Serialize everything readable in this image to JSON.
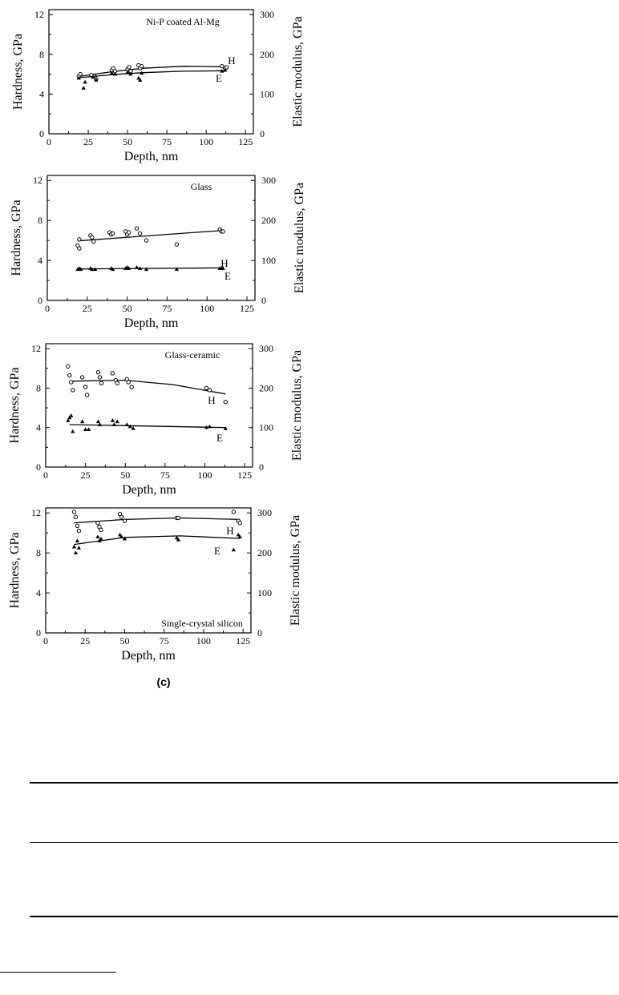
{
  "figure_label": "(c)",
  "chart_data": [
    {
      "type": "scatter",
      "title": "Ni-P coated Al-Mg",
      "xlabel": "Depth, nm",
      "ylabel": "Hardness, GPa",
      "y2label": "Elastic modulus, GPa",
      "xlim": [
        0,
        130
      ],
      "xticks": [
        0,
        25,
        50,
        75,
        100,
        125
      ],
      "ylim": [
        0,
        12.5
      ],
      "yticks": [
        0,
        4,
        8,
        12
      ],
      "y2lim": [
        0,
        312.5
      ],
      "y2ticks": [
        0,
        100,
        200,
        300
      ],
      "grid": false,
      "series": [
        {
          "name": "H",
          "marker": "circle",
          "points": [
            [
              19,
              5.8
            ],
            [
              20,
              6.0
            ],
            [
              27,
              5.9
            ],
            [
              29,
              5.8
            ],
            [
              30,
              5.5
            ],
            [
              40,
              6.4
            ],
            [
              41,
              6.6
            ],
            [
              42,
              6.3
            ],
            [
              50,
              6.5
            ],
            [
              51,
              6.7
            ],
            [
              52,
              6.3
            ],
            [
              57,
              6.9
            ],
            [
              58,
              6.6
            ],
            [
              59,
              6.8
            ],
            [
              110,
              6.8
            ],
            [
              112,
              6.6
            ],
            [
              113,
              6.7
            ]
          ],
          "fit": [
            [
              20,
              5.8
            ],
            [
              40,
              6.25
            ],
            [
              60,
              6.6
            ],
            [
              85,
              6.8
            ],
            [
              112,
              6.75
            ]
          ]
        },
        {
          "name": "E",
          "marker": "triangle",
          "points": [
            [
              19,
              5.6
            ],
            [
              22,
              4.6
            ],
            [
              23,
              5.2
            ],
            [
              28,
              5.7
            ],
            [
              30,
              5.4
            ],
            [
              40,
              6.1
            ],
            [
              42,
              6.0
            ],
            [
              50,
              6.2
            ],
            [
              52,
              6.0
            ],
            [
              57,
              5.6
            ],
            [
              58,
              5.4
            ],
            [
              59,
              6.1
            ],
            [
              110,
              6.3
            ],
            [
              112,
              6.4
            ]
          ],
          "fit": [
            [
              20,
              5.65
            ],
            [
              40,
              5.95
            ],
            [
              60,
              6.15
            ],
            [
              85,
              6.3
            ],
            [
              112,
              6.35
            ]
          ]
        }
      ]
    },
    {
      "type": "scatter",
      "title": "Glass",
      "xlabel": "Depth, nm",
      "ylabel": "Hardness, GPa",
      "y2label": "Elastic modulus, GPa",
      "xlim": [
        0,
        130
      ],
      "xticks": [
        0,
        25,
        50,
        75,
        100,
        125
      ],
      "ylim": [
        0,
        12.5
      ],
      "yticks": [
        0,
        4,
        8,
        12
      ],
      "y2lim": [
        0,
        312.5
      ],
      "y2ticks": [
        0,
        100,
        200,
        300
      ],
      "grid": false,
      "series": [
        {
          "name": "H",
          "marker": "circle",
          "points": [
            [
              19,
              5.5
            ],
            [
              20,
              5.2
            ],
            [
              20,
              6.1
            ],
            [
              27,
              6.5
            ],
            [
              28,
              6.3
            ],
            [
              29,
              5.9
            ],
            [
              39,
              6.8
            ],
            [
              40,
              6.6
            ],
            [
              41,
              6.7
            ],
            [
              49,
              6.9
            ],
            [
              50,
              6.6
            ],
            [
              51,
              6.8
            ],
            [
              56,
              7.2
            ],
            [
              58,
              6.7
            ],
            [
              62,
              6.0
            ],
            [
              81,
              5.6
            ],
            [
              108,
              7.1
            ],
            [
              109,
              6.9
            ],
            [
              110,
              6.9
            ]
          ],
          "fit": [
            [
              19,
              5.95
            ],
            [
              110,
              7.0
            ]
          ]
        },
        {
          "name": "E",
          "marker": "triangle",
          "points": [
            [
              19,
              3.1
            ],
            [
              20,
              3.2
            ],
            [
              21,
              3.1
            ],
            [
              27,
              3.2
            ],
            [
              28,
              3.1
            ],
            [
              30,
              3.1
            ],
            [
              40,
              3.2
            ],
            [
              41,
              3.1
            ],
            [
              49,
              3.2
            ],
            [
              50,
              3.3
            ],
            [
              51,
              3.2
            ],
            [
              56,
              3.3
            ],
            [
              58,
              3.2
            ],
            [
              62,
              3.1
            ],
            [
              81,
              3.1
            ],
            [
              108,
              3.2
            ],
            [
              109,
              3.2
            ],
            [
              110,
              3.2
            ]
          ],
          "fit": [
            [
              19,
              3.15
            ],
            [
              110,
              3.25
            ]
          ]
        }
      ]
    },
    {
      "type": "scatter",
      "title": "Glass-ceramic",
      "xlabel": "Depth, nm",
      "ylabel": "Hardness, GPa",
      "y2label": "Elastic modulus, GPa",
      "xlim": [
        0,
        130
      ],
      "xticks": [
        0,
        25,
        50,
        75,
        100,
        125
      ],
      "ylim": [
        0,
        12.5
      ],
      "yticks": [
        0,
        4,
        8,
        12
      ],
      "y2lim": [
        0,
        312.5
      ],
      "y2ticks": [
        0,
        100,
        200,
        300
      ],
      "grid": false,
      "series": [
        {
          "name": "H",
          "marker": "circle",
          "points": [
            [
              14,
              10.2
            ],
            [
              15,
              9.3
            ],
            [
              16,
              8.6
            ],
            [
              17,
              7.8
            ],
            [
              23,
              9.1
            ],
            [
              25,
              8.1
            ],
            [
              26,
              7.3
            ],
            [
              33,
              9.6
            ],
            [
              34,
              9.1
            ],
            [
              35,
              8.5
            ],
            [
              42,
              9.5
            ],
            [
              44,
              8.8
            ],
            [
              45,
              8.5
            ],
            [
              51,
              8.9
            ],
            [
              52,
              8.6
            ],
            [
              54,
              8.1
            ],
            [
              101,
              8.0
            ],
            [
              103,
              7.8
            ],
            [
              113,
              6.6
            ]
          ],
          "fit": [
            [
              15,
              8.7
            ],
            [
              50,
              8.8
            ],
            [
              80,
              8.35
            ],
            [
              113,
              7.4
            ]
          ]
        },
        {
          "name": "E",
          "marker": "triangle",
          "points": [
            [
              14,
              4.7
            ],
            [
              15,
              5.0
            ],
            [
              16,
              5.2
            ],
            [
              17,
              3.6
            ],
            [
              23,
              4.6
            ],
            [
              25,
              3.8
            ],
            [
              27,
              3.8
            ],
            [
              33,
              4.6
            ],
            [
              34,
              4.3
            ],
            [
              42,
              4.7
            ],
            [
              43,
              4.3
            ],
            [
              45,
              4.6
            ],
            [
              51,
              4.3
            ],
            [
              53,
              4.1
            ],
            [
              55,
              3.9
            ],
            [
              101,
              4.0
            ],
            [
              103,
              4.1
            ],
            [
              113,
              3.9
            ]
          ],
          "fit": [
            [
              15,
              4.3
            ],
            [
              50,
              4.2
            ],
            [
              113,
              4.0
            ]
          ]
        }
      ]
    },
    {
      "type": "scatter",
      "title": "Single-crystal silicon",
      "xlabel": "Depth, nm",
      "ylabel": "Hardness, GPa",
      "y2label": "Elastic modulus, GPa",
      "xlim": [
        0,
        130
      ],
      "xticks": [
        0,
        25,
        50,
        75,
        100,
        125
      ],
      "ylim": [
        0,
        12.5
      ],
      "yticks": [
        0,
        4,
        8,
        12
      ],
      "y2lim": [
        0,
        312.5
      ],
      "y2ticks": [
        0,
        100,
        200,
        300
      ],
      "grid": false,
      "series": [
        {
          "name": "H",
          "marker": "circle",
          "points": [
            [
              18,
              12.1
            ],
            [
              19,
              11.6
            ],
            [
              20,
              10.7
            ],
            [
              21,
              10.2
            ],
            [
              33,
              11.0
            ],
            [
              34,
              10.6
            ],
            [
              35,
              10.3
            ],
            [
              47,
              11.9
            ],
            [
              48,
              11.6
            ],
            [
              50,
              11.2
            ],
            [
              83,
              11.5
            ],
            [
              84,
              11.5
            ],
            [
              119,
              12.1
            ],
            [
              122,
              11.2
            ],
            [
              123,
              11.0
            ]
          ],
          "fit": [
            [
              18,
              11.0
            ],
            [
              50,
              11.35
            ],
            [
              85,
              11.5
            ],
            [
              123,
              11.35
            ]
          ]
        },
        {
          "name": "E",
          "marker": "triangle",
          "points": [
            [
              18,
              8.6
            ],
            [
              19,
              8.0
            ],
            [
              20,
              9.2
            ],
            [
              21,
              8.5
            ],
            [
              33,
              9.6
            ],
            [
              34,
              9.2
            ],
            [
              35,
              9.4
            ],
            [
              47,
              9.8
            ],
            [
              48,
              9.6
            ],
            [
              50,
              9.4
            ],
            [
              83,
              9.5
            ],
            [
              84,
              9.3
            ],
            [
              119,
              8.3
            ],
            [
              122,
              9.8
            ],
            [
              123,
              9.6
            ]
          ],
          "fit": [
            [
              18,
              8.85
            ],
            [
              50,
              9.55
            ],
            [
              85,
              9.7
            ],
            [
              123,
              9.45
            ]
          ]
        }
      ]
    }
  ]
}
